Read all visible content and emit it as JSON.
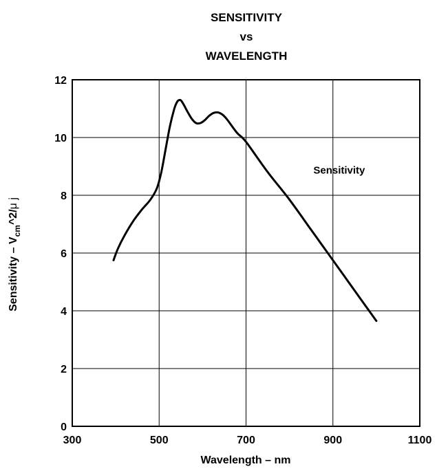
{
  "chart_data": {
    "type": "line",
    "title": [
      "SENSITIVITY",
      "vs",
      "WAVELENGTH"
    ],
    "xlabel": "Wavelength – nm",
    "ylabel": {
      "prefix": "Sensitivity – V",
      "subscript": "cm",
      "suffix": "^2/",
      "mu": "μ",
      "tail": " j"
    },
    "xlim": [
      300,
      1100
    ],
    "ylim": [
      0,
      12
    ],
    "xticks": [
      300,
      500,
      700,
      900,
      1100
    ],
    "yticks": [
      0,
      2,
      4,
      6,
      8,
      10,
      12
    ],
    "xtick_labels": [
      "300",
      "500",
      "700",
      "900",
      "1100"
    ],
    "ytick_labels": [
      "0",
      "2",
      "4",
      "6",
      "8",
      "10",
      "12"
    ],
    "grid": true,
    "series": [
      {
        "name": "Sensitivity",
        "x": [
          395,
          405,
          420,
          440,
          460,
          480,
          495,
          505,
          515,
          525,
          535,
          542,
          548,
          552,
          558,
          565,
          575,
          585,
          595,
          605,
          615,
          625,
          635,
          645,
          655,
          665,
          680,
          700,
          750,
          800,
          850,
          900,
          950,
          1000
        ],
        "y": [
          5.75,
          6.15,
          6.6,
          7.1,
          7.5,
          7.85,
          8.25,
          8.8,
          9.6,
          10.4,
          11.0,
          11.25,
          11.3,
          11.25,
          11.1,
          10.9,
          10.65,
          10.5,
          10.5,
          10.6,
          10.75,
          10.85,
          10.87,
          10.8,
          10.65,
          10.45,
          10.15,
          9.85,
          8.8,
          7.85,
          6.8,
          5.75,
          4.7,
          3.65
        ]
      }
    ],
    "annotations": [
      {
        "text": "Sensitivity",
        "x": 855,
        "y": 8.75
      }
    ],
    "colors": {
      "line": "#000000",
      "grid": "#000000",
      "frame": "#000000",
      "background": "#ffffff"
    }
  }
}
